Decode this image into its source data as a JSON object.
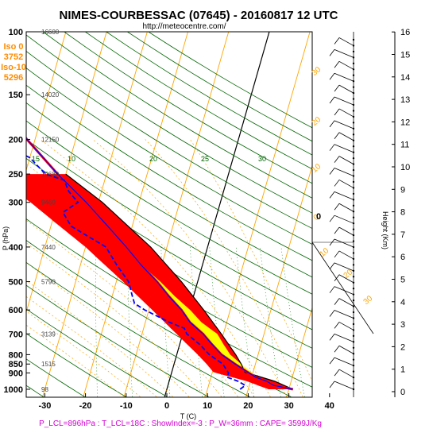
{
  "header": {
    "title": "NIMES-COURBESSAC (07645) - 20160817 12 UTC",
    "subtitle": "http://meteocentre.com/"
  },
  "iso_box": {
    "iso0_label": "Iso 0",
    "iso0_value": "3752",
    "iso10_label": "Iso-10",
    "iso10_value": "5296"
  },
  "colors": {
    "temperature": "#ff0000",
    "dewpoint": "#0000ff",
    "cape": "#ff0000",
    "cin": "#ffff00",
    "isotherm": "#ffa500",
    "dry_adiabat": "#006400",
    "moist_adiabat": "#ffa500",
    "mixing_ratio": "#008000",
    "parcel": "#000000",
    "footer": "#d400d4"
  },
  "chart_data": {
    "type": "skew-t",
    "xlabel": "T (C)",
    "ylabel": "P (hPa)",
    "y2label": "Height (Km)",
    "x_ticks": [
      -30,
      -20,
      -10,
      0,
      10,
      20,
      30,
      40
    ],
    "p_ticks": [
      100,
      150,
      200,
      250,
      300,
      400,
      500,
      600,
      700,
      800,
      850,
      900,
      1000
    ],
    "xlim": [
      -33,
      46
    ],
    "plim": [
      100,
      1050
    ],
    "log_pressure": true,
    "height_ticks_km": [
      0,
      1,
      2,
      3,
      4,
      5,
      6,
      7,
      8,
      9,
      10,
      11,
      12,
      13,
      14,
      15,
      16
    ],
    "height_labels": [
      {
        "p": 100,
        "text": "16600"
      },
      {
        "p": 150,
        "text": "14020"
      },
      {
        "p": 200,
        "text": "12150"
      },
      {
        "p": 250,
        "text": "10680"
      },
      {
        "p": 300,
        "text": "9460"
      },
      {
        "p": 400,
        "text": "7440"
      },
      {
        "p": 500,
        "text": "5790"
      },
      {
        "p": 700,
        "text": "3139"
      },
      {
        "p": 850,
        "text": "1515"
      },
      {
        "p": 1000,
        "text": "98"
      }
    ],
    "mixing_ratio_labels": [
      "15",
      "10",
      "20",
      "25",
      "30"
    ],
    "isotherm_labels": [
      "30",
      "20",
      "10",
      "0",
      "10",
      "20",
      "30"
    ],
    "series": [
      {
        "name": "Temperature",
        "points": [
          {
            "p": 1000,
            "t": 31
          },
          {
            "p": 975,
            "t": 26
          },
          {
            "p": 950,
            "t": 24
          },
          {
            "p": 925,
            "t": 21
          },
          {
            "p": 900,
            "t": 19
          },
          {
            "p": 850,
            "t": 15
          },
          {
            "p": 800,
            "t": 11
          },
          {
            "p": 750,
            "t": 8
          },
          {
            "p": 700,
            "t": 5
          },
          {
            "p": 650,
            "t": 1
          },
          {
            "p": 600,
            "t": -2
          },
          {
            "p": 550,
            "t": -6
          },
          {
            "p": 500,
            "t": -10
          },
          {
            "p": 450,
            "t": -15
          },
          {
            "p": 400,
            "t": -20
          },
          {
            "p": 350,
            "t": -26
          },
          {
            "p": 300,
            "t": -33
          },
          {
            "p": 250,
            "t": -42
          },
          {
            "p": 200,
            "t": -52
          },
          {
            "p": 175,
            "t": -57
          },
          {
            "p": 150,
            "t": -60
          },
          {
            "p": 125,
            "t": -65
          },
          {
            "p": 100,
            "t": -68
          }
        ]
      },
      {
        "name": "Dewpoint",
        "points": [
          {
            "p": 1000,
            "t": 18
          },
          {
            "p": 975,
            "t": 19
          },
          {
            "p": 950,
            "t": 17
          },
          {
            "p": 925,
            "t": 14
          },
          {
            "p": 900,
            "t": 14
          },
          {
            "p": 875,
            "t": 13
          },
          {
            "p": 850,
            "t": 12
          },
          {
            "p": 800,
            "t": 8
          },
          {
            "p": 750,
            "t": 5
          },
          {
            "p": 700,
            "t": 1
          },
          {
            "p": 675,
            "t": 0
          },
          {
            "p": 650,
            "t": -4
          },
          {
            "p": 600,
            "t": -11
          },
          {
            "p": 575,
            "t": -14
          },
          {
            "p": 550,
            "t": -15
          },
          {
            "p": 500,
            "t": -17
          },
          {
            "p": 450,
            "t": -21
          },
          {
            "p": 400,
            "t": -25
          },
          {
            "p": 350,
            "t": -35
          },
          {
            "p": 320,
            "t": -38
          },
          {
            "p": 300,
            "t": -35
          },
          {
            "p": 280,
            "t": -38
          },
          {
            "p": 260,
            "t": -40
          },
          {
            "p": 250,
            "t": -45
          },
          {
            "p": 225,
            "t": -50
          },
          {
            "p": 200,
            "t": -60
          },
          {
            "p": 175,
            "t": -62
          },
          {
            "p": 150,
            "t": -70
          },
          {
            "p": 125,
            "t": -75
          },
          {
            "p": 100,
            "t": -85
          }
        ]
      },
      {
        "name": "Parcel",
        "points": [
          {
            "p": 1000,
            "t": 31
          },
          {
            "p": 950,
            "t": 26
          },
          {
            "p": 896,
            "t": 18
          },
          {
            "p": 850,
            "t": 16.5
          },
          {
            "p": 800,
            "t": 14.5
          },
          {
            "p": 700,
            "t": 9.5
          },
          {
            "p": 600,
            "t": 3.5
          },
          {
            "p": 500,
            "t": -4
          },
          {
            "p": 400,
            "t": -14
          },
          {
            "p": 300,
            "t": -29
          },
          {
            "p": 250,
            "t": -40
          }
        ]
      }
    ],
    "freezing_level_label": "0",
    "wind_barbs_count": 60
  },
  "footer": {
    "text": "P_LCL=896hPa : T_LCL=18C : ShowIndex=-3 : P_W=36mm : CAPE= 3599J/Kg"
  }
}
